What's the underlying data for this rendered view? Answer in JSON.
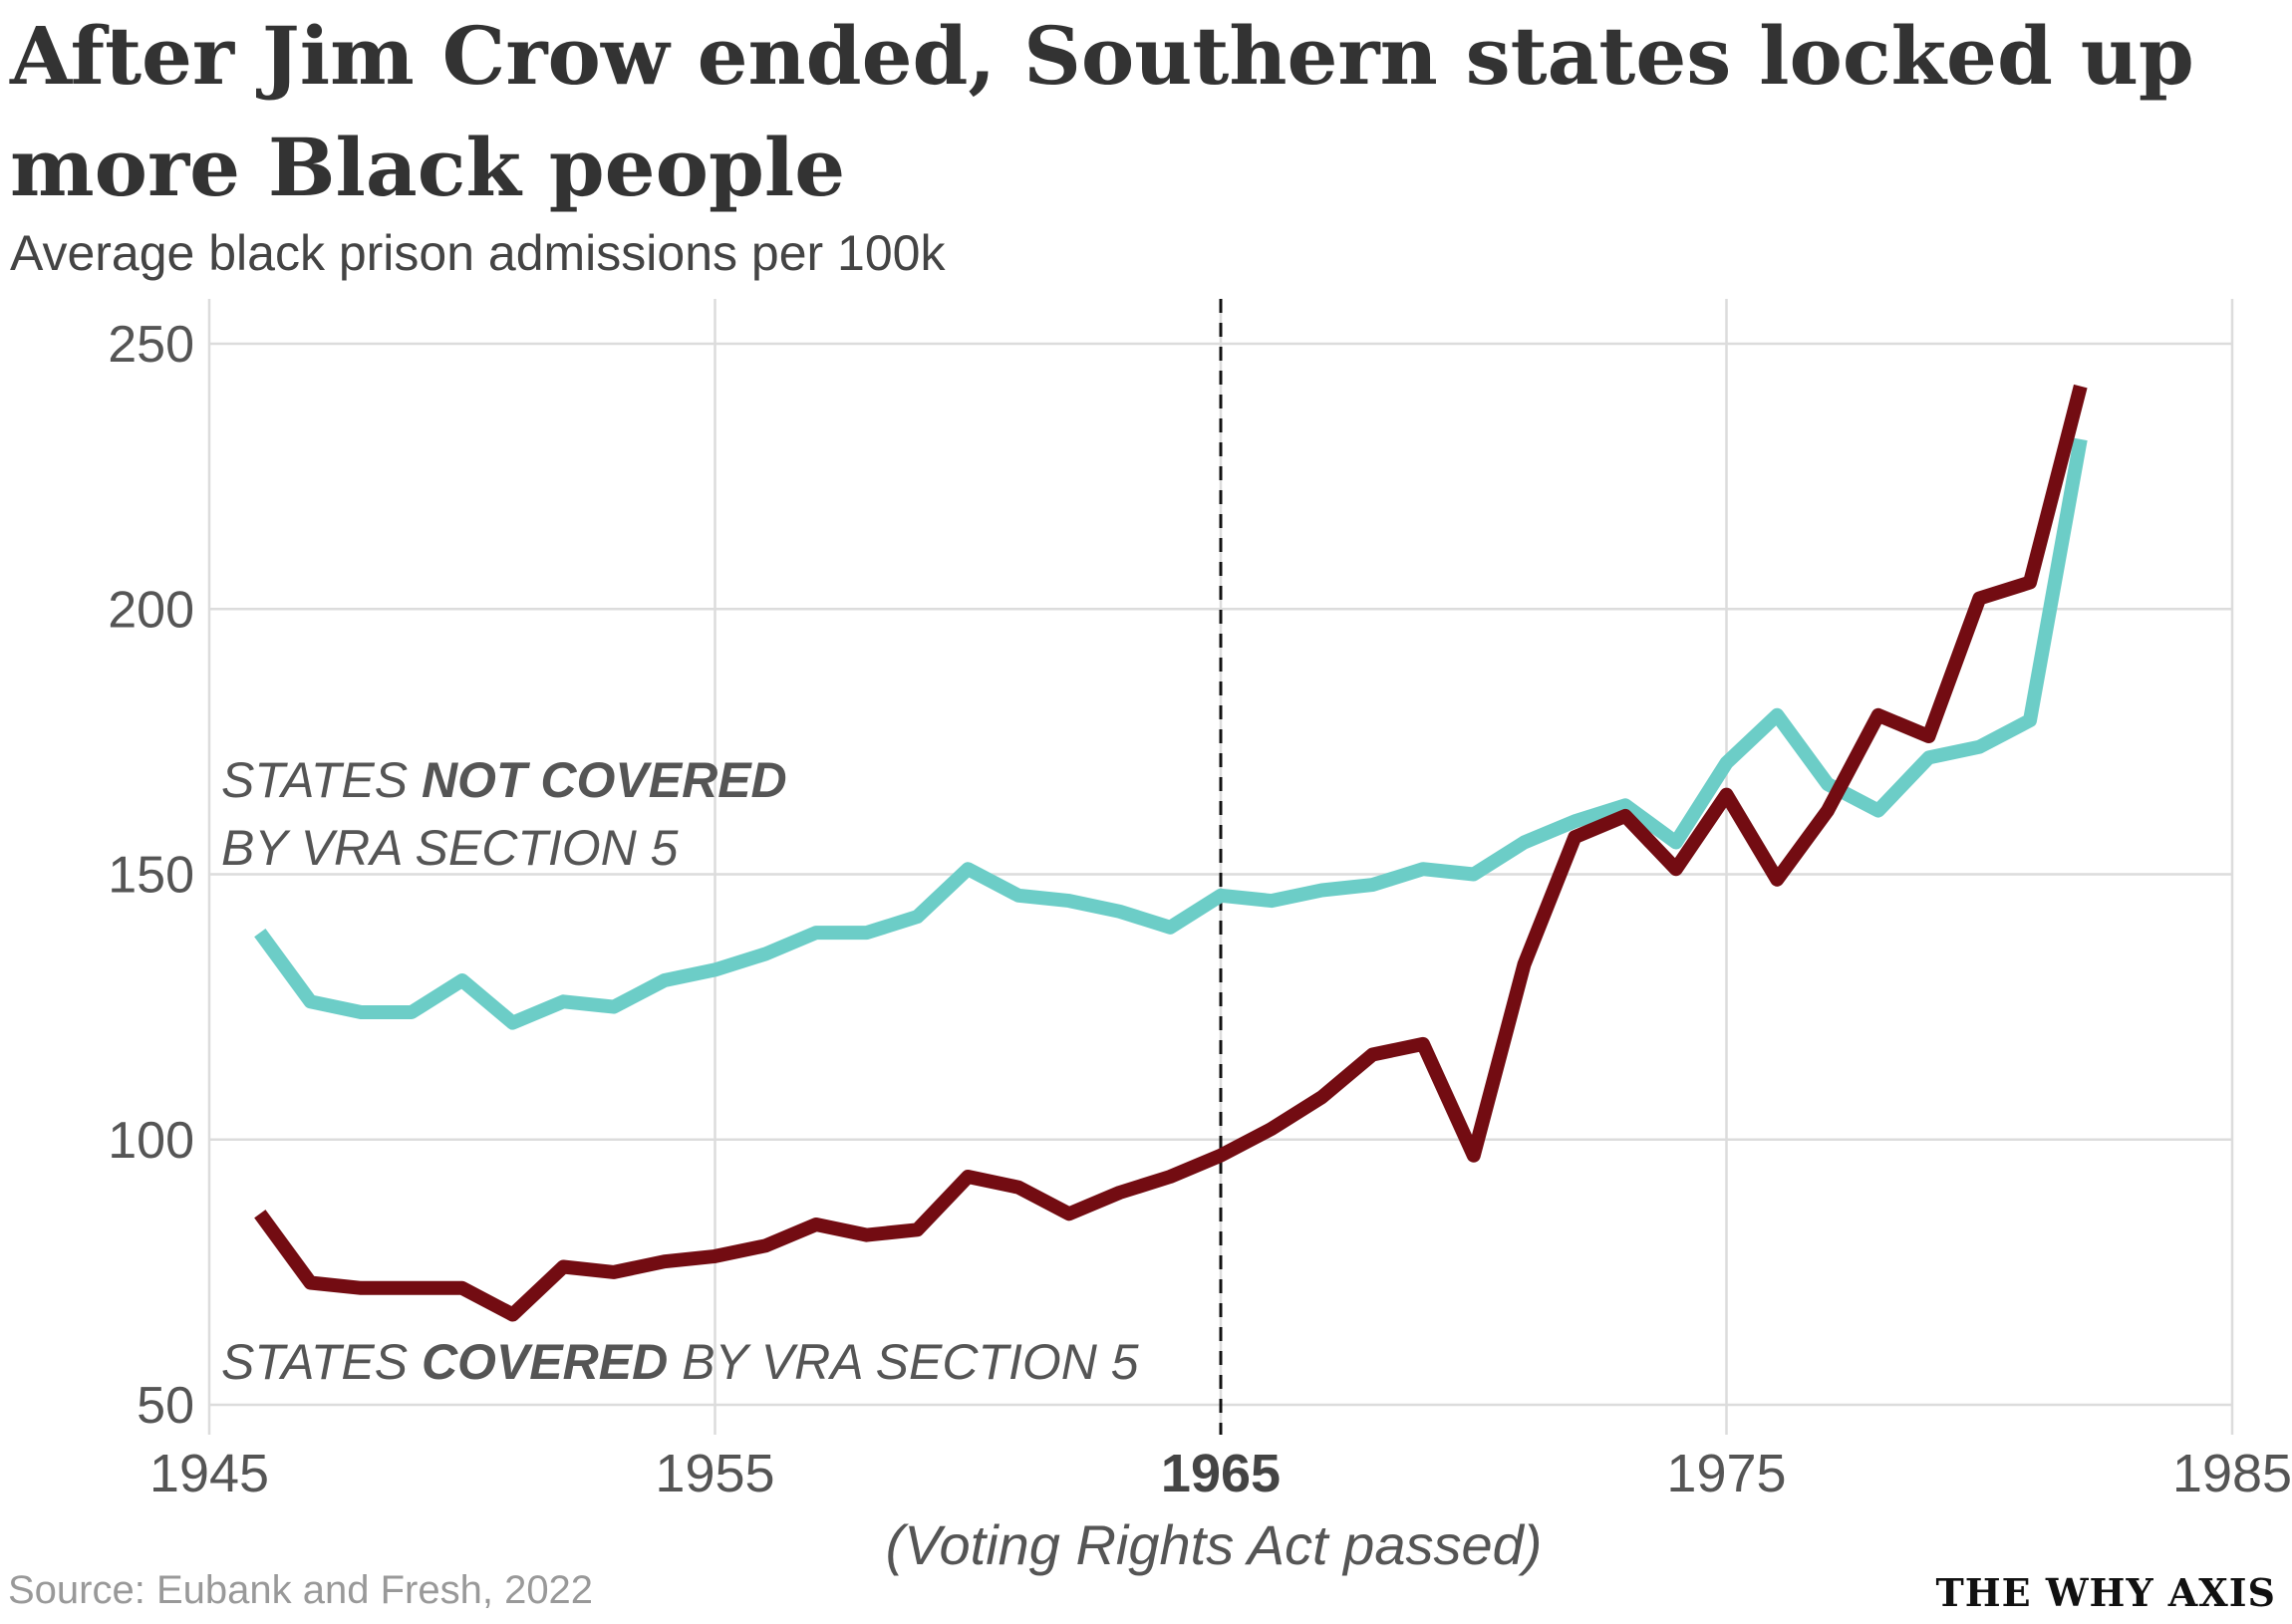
{
  "header": {
    "title": "After Jim Crow ended, Southern states locked up more Black people",
    "subtitle": "Average black prison admissions per 100k"
  },
  "footer": {
    "source": "Source: Eubank and Fresh, 2022",
    "brand": "THE WHY AXIS"
  },
  "annotations": {
    "not_covered_line1_a": "STATES ",
    "not_covered_line1_b": "NOT COVERED",
    "not_covered_line2": "BY VRA SECTION 5",
    "covered_a": "STATES ",
    "covered_b": "COVERED",
    "covered_c": " BY VRA SECTION 5",
    "vra_label": "(Voting Rights Act passed)"
  },
  "colors": {
    "not_covered": "#6ccdc7",
    "covered": "#730c12",
    "grid": "#dcdcdc",
    "tick_text": "#555555",
    "annotation": "#555555"
  },
  "chart_data": {
    "type": "line",
    "title": "After Jim Crow ended, Southern states locked up more Black people",
    "subtitle": "Average black prison admissions per 100k",
    "xlim": [
      1945,
      1985
    ],
    "ylim": [
      50,
      250
    ],
    "x_ticks": [
      1945,
      1955,
      1965,
      1975,
      1985
    ],
    "y_ticks": [
      50,
      100,
      150,
      200,
      250
    ],
    "highlight_x": 1965,
    "highlight_label": "(Voting Rights Act passed)",
    "grid": true,
    "x": [
      1946,
      1947,
      1948,
      1949,
      1950,
      1951,
      1952,
      1953,
      1954,
      1955,
      1956,
      1957,
      1958,
      1959,
      1960,
      1961,
      1962,
      1963,
      1964,
      1965,
      1966,
      1967,
      1968,
      1969,
      1970,
      1971,
      1972,
      1973,
      1974,
      1975,
      1976,
      1977,
      1978,
      1979,
      1980,
      1981,
      1982
    ],
    "series": [
      {
        "name": "STATES NOT COVERED BY VRA SECTION 5",
        "color": "#6ccdc7",
        "values": [
          139,
          126,
          124,
          124,
          130,
          122,
          126,
          125,
          130,
          132,
          135,
          139,
          139,
          142,
          151,
          146,
          145,
          143,
          140,
          146,
          145,
          147,
          148,
          151,
          150,
          156,
          160,
          163,
          156,
          171,
          180,
          167,
          162,
          172,
          174,
          179,
          232
        ]
      },
      {
        "name": "STATES COVERED BY VRA SECTION 5",
        "color": "#730c12",
        "values": [
          86,
          73,
          72,
          72,
          72,
          67,
          76,
          75,
          77,
          78,
          80,
          84,
          82,
          83,
          93,
          91,
          86,
          90,
          93,
          97,
          102,
          108,
          116,
          118,
          97,
          133,
          157,
          161,
          151,
          165,
          149,
          162,
          180,
          176,
          202,
          205,
          242
        ]
      }
    ]
  }
}
